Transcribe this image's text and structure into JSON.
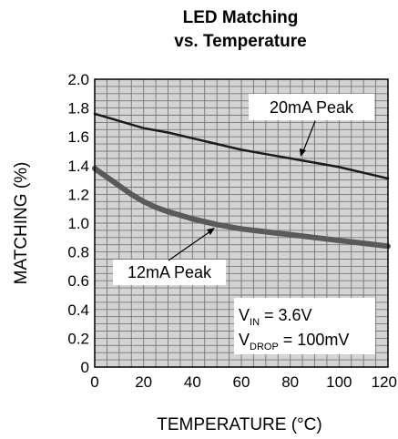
{
  "chart_data": {
    "type": "line",
    "title_line1": "LED Matching",
    "title_line2": "vs. Temperature",
    "xlabel": "TEMPERATURE (°C)",
    "ylabel": "MATCHING (%)",
    "xlim": [
      0,
      120
    ],
    "ylim": [
      0,
      2.0
    ],
    "x_ticks": [
      "0",
      "20",
      "40",
      "60",
      "80",
      "100",
      "120"
    ],
    "y_ticks": [
      "0",
      "0.2",
      "0.4",
      "0.6",
      "0.8",
      "1.0",
      "1.2",
      "1.4",
      "1.6",
      "1.8",
      "2.0"
    ],
    "grid": true,
    "series": [
      {
        "name": "20mA Peak",
        "x": [
          0,
          10,
          20,
          30,
          40,
          50,
          60,
          70,
          80,
          90,
          100,
          110,
          120
        ],
        "y": [
          1.76,
          1.71,
          1.66,
          1.63,
          1.59,
          1.55,
          1.51,
          1.48,
          1.45,
          1.42,
          1.39,
          1.35,
          1.31
        ],
        "color": "#1a1a1a",
        "width": 2.5
      },
      {
        "name": "12mA Peak",
        "x": [
          0,
          5,
          10,
          15,
          20,
          25,
          30,
          40,
          50,
          60,
          70,
          80,
          90,
          100,
          110,
          120
        ],
        "y": [
          1.38,
          1.32,
          1.26,
          1.2,
          1.15,
          1.11,
          1.08,
          1.03,
          0.99,
          0.96,
          0.94,
          0.92,
          0.9,
          0.88,
          0.86,
          0.84
        ],
        "color": "#5a5a5a",
        "width": 6
      }
    ],
    "annotations": {
      "series_20ma_label": "20mA Peak",
      "series_12ma_label": "12mA Peak",
      "vin_symbol": "V",
      "vin_sub": "IN",
      "vin_value": " = 3.6V",
      "vdrop_symbol": "V",
      "vdrop_sub": "DROP",
      "vdrop_value": " = 100mV"
    }
  },
  "colors": {
    "grid": "#777777",
    "frame": "#000000",
    "plot_background": "#d4d4d4",
    "label_box": "#ffffff"
  }
}
